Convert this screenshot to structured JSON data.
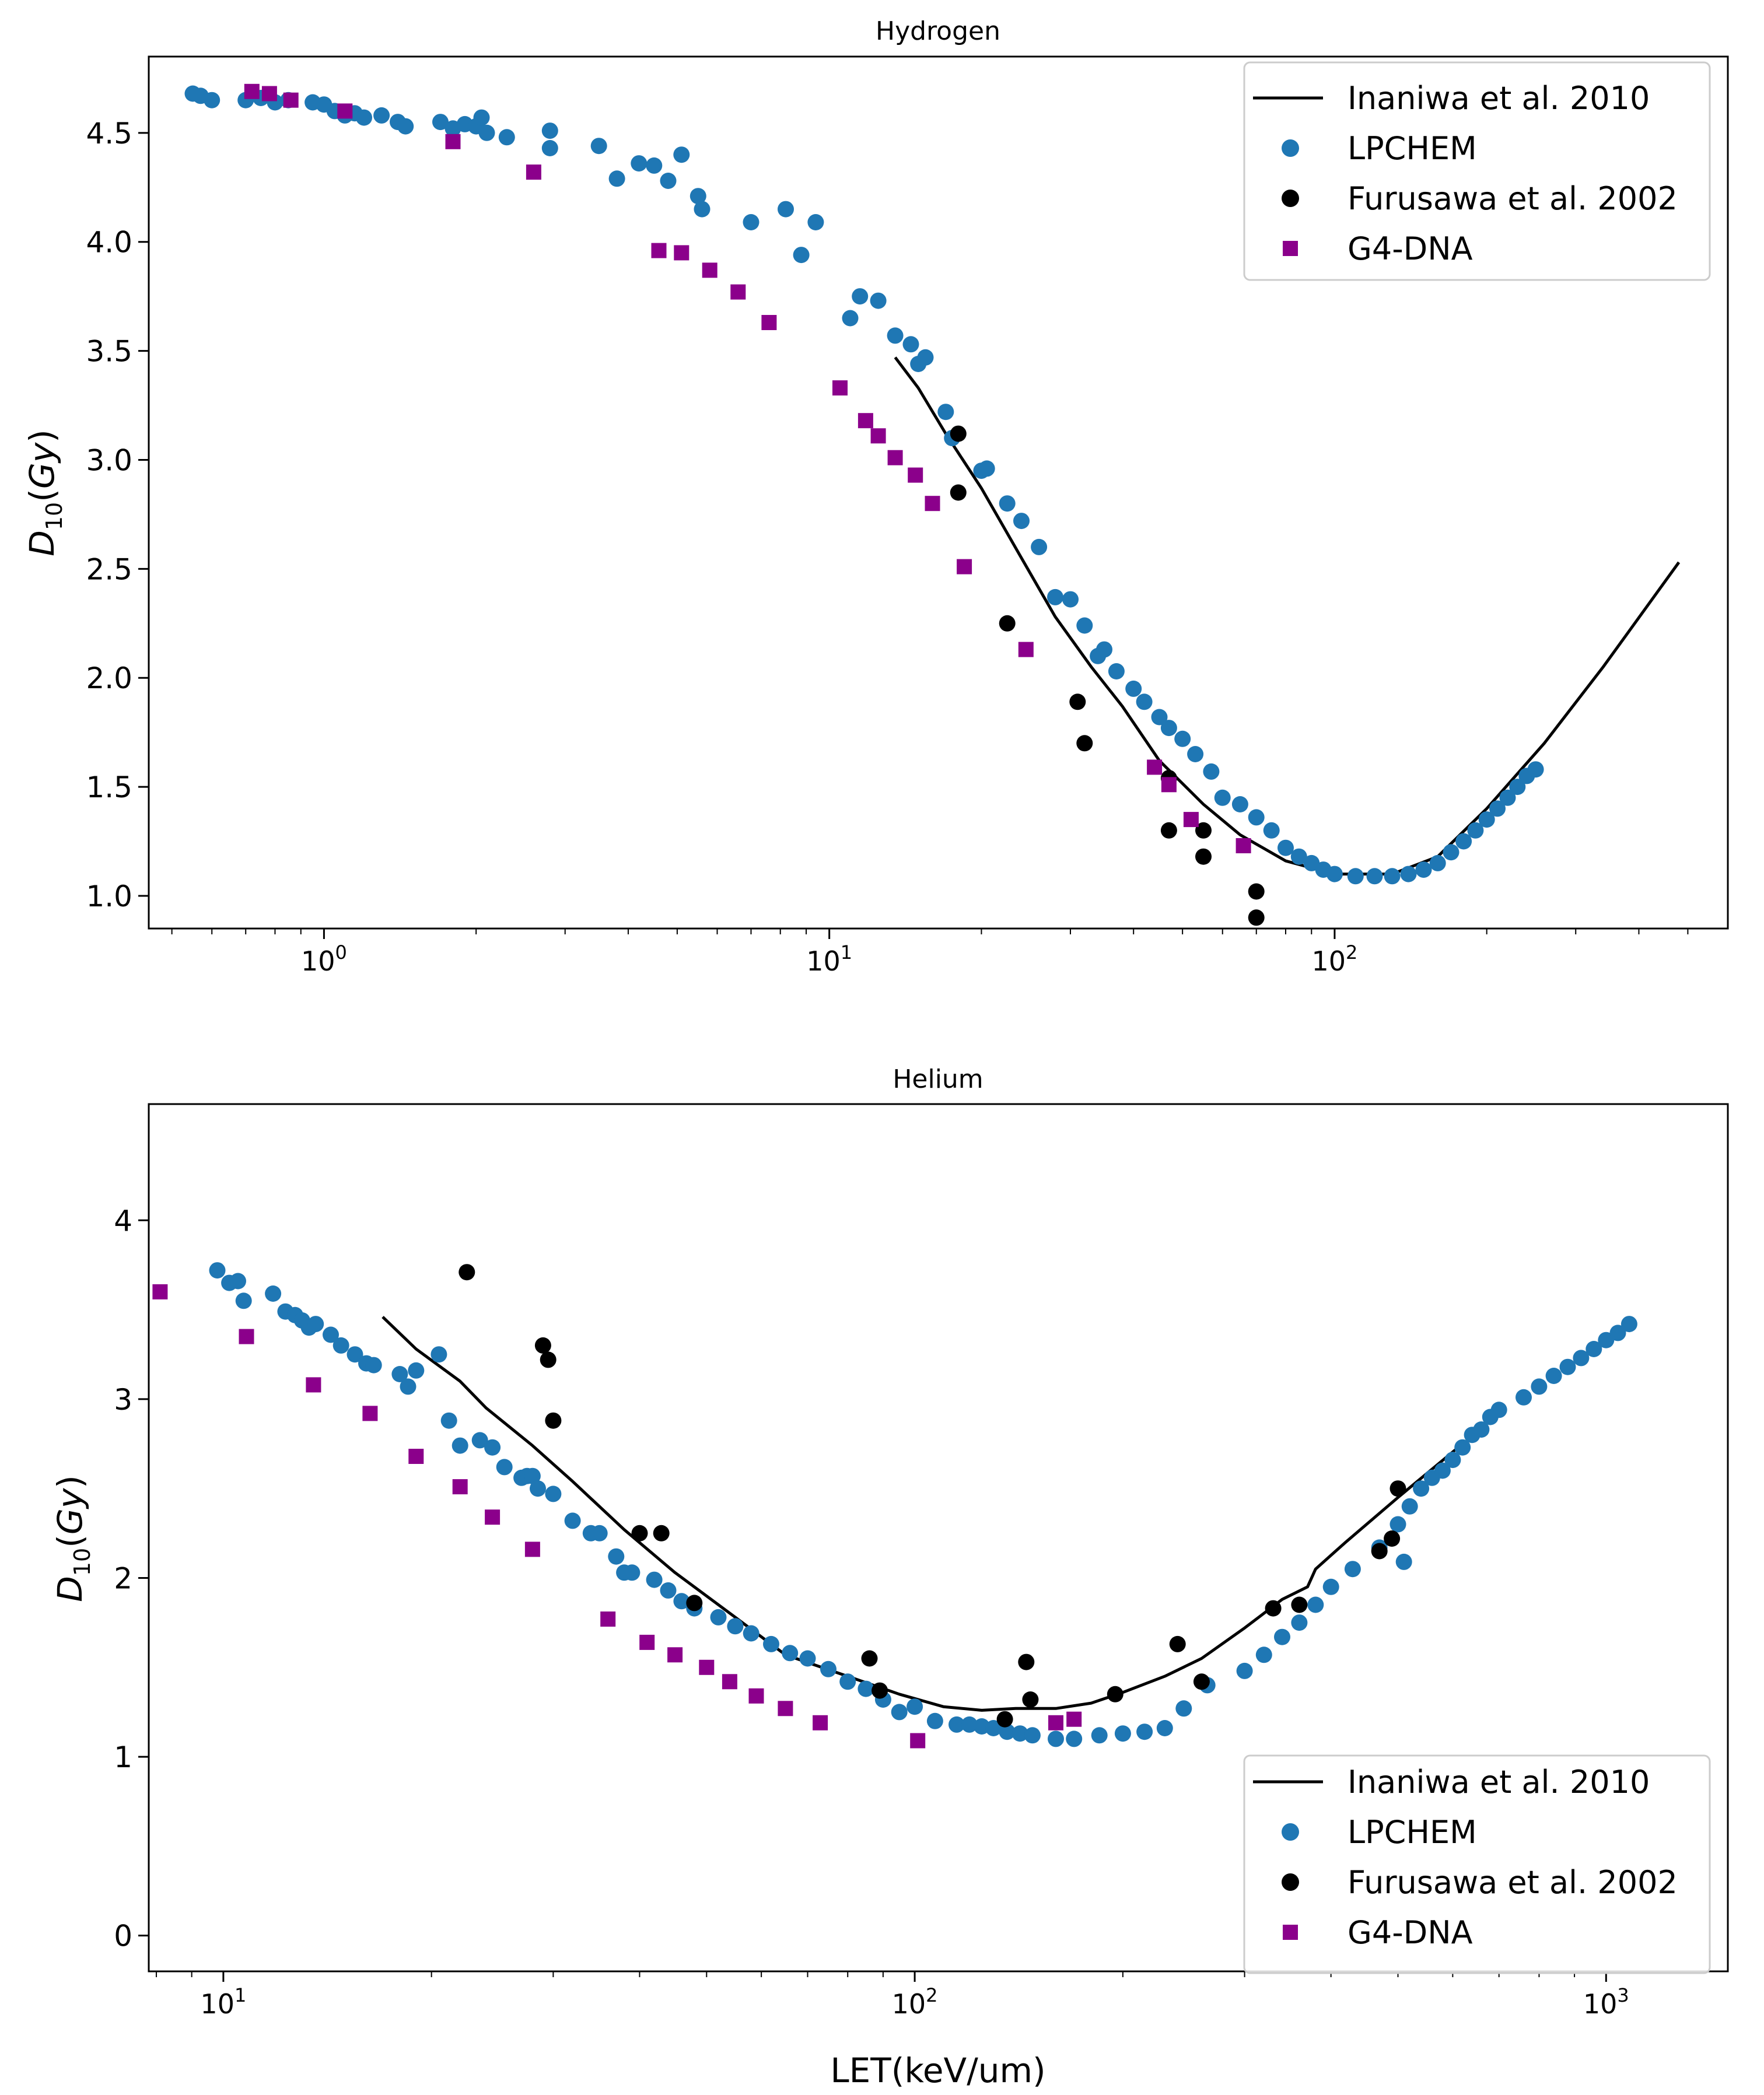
{
  "chart_data": [
    {
      "type": "scatter",
      "title": "Hydrogen",
      "xlabel": "",
      "ylabel": "D_10(Gy)",
      "xscale": "log",
      "xlim": [
        0.45,
        600
      ],
      "ylim": [
        0.85,
        4.85
      ],
      "yticks": [
        1.0,
        1.5,
        2.0,
        2.5,
        3.0,
        3.5,
        4.0,
        4.5
      ],
      "ytick_labels": [
        "1.0",
        "1.5",
        "2.0",
        "2.5",
        "3.0",
        "3.5",
        "4.0",
        "4.5"
      ],
      "xticks": [
        {
          "value": 1,
          "base": "10",
          "exp": "0"
        },
        {
          "value": 10,
          "base": "10",
          "exp": "1"
        },
        {
          "value": 100,
          "base": "10",
          "exp": "2"
        }
      ],
      "legend_position": "top-right",
      "series": [
        {
          "name": "Inaniwa et al. 2010",
          "kind": "line",
          "color": "#000000",
          "x": [
            13.5,
            15,
            17,
            20,
            24,
            28,
            33,
            38,
            45,
            55,
            65,
            80,
            100,
            130,
            160,
            200,
            260,
            340,
            480
          ],
          "y": [
            3.47,
            3.33,
            3.12,
            2.87,
            2.55,
            2.28,
            2.05,
            1.87,
            1.62,
            1.42,
            1.28,
            1.16,
            1.1,
            1.1,
            1.18,
            1.4,
            1.7,
            2.05,
            2.53
          ]
        },
        {
          "name": "LPCHEM",
          "kind": "circle",
          "color": "#1f77b4",
          "x": [
            0.55,
            0.57,
            0.6,
            0.7,
            0.75,
            0.8,
            0.85,
            0.95,
            1.0,
            1.05,
            1.1,
            1.15,
            1.2,
            1.3,
            1.4,
            1.45,
            1.7,
            1.8,
            1.9,
            2.0,
            2.05,
            2.1,
            2.3,
            2.8,
            2.8,
            3.5,
            3.8,
            4.2,
            4.5,
            4.8,
            5.1,
            5.5,
            5.6,
            7.0,
            8.2,
            8.8,
            9.4,
            11.0,
            11.5,
            12.5,
            13.5,
            14.5,
            15.0,
            15.5,
            17.0,
            17.5,
            20.0,
            20.5,
            22.5,
            24.0,
            26.0,
            28.0,
            30.0,
            32.0,
            34.0,
            35.0,
            37.0,
            40.0,
            42.0,
            45.0,
            47.0,
            50.0,
            53.0,
            57.0,
            60.0,
            65.0,
            70.0,
            75.0,
            80.0,
            85.0,
            90.0,
            95.0,
            100.0,
            110.0,
            120.0,
            130.0,
            140.0,
            150.0,
            160.0,
            170.0,
            180.0,
            190.0,
            200.0,
            210.0,
            220.0,
            230.0,
            240.0,
            250.0
          ],
          "y": [
            4.68,
            4.67,
            4.65,
            4.65,
            4.66,
            4.64,
            4.65,
            4.64,
            4.63,
            4.6,
            4.58,
            4.59,
            4.57,
            4.58,
            4.55,
            4.53,
            4.55,
            4.52,
            4.54,
            4.53,
            4.57,
            4.5,
            4.48,
            4.51,
            4.43,
            4.44,
            4.29,
            4.36,
            4.35,
            4.28,
            4.4,
            4.21,
            4.15,
            4.09,
            4.15,
            3.94,
            4.09,
            3.65,
            3.75,
            3.73,
            3.57,
            3.53,
            3.44,
            3.47,
            3.22,
            3.1,
            2.95,
            2.96,
            2.8,
            2.72,
            2.6,
            2.37,
            2.36,
            2.24,
            2.1,
            2.13,
            2.03,
            1.95,
            1.89,
            1.82,
            1.77,
            1.72,
            1.65,
            1.57,
            1.45,
            1.42,
            1.36,
            1.3,
            1.22,
            1.18,
            1.15,
            1.12,
            1.1,
            1.09,
            1.09,
            1.09,
            1.1,
            1.12,
            1.15,
            1.2,
            1.25,
            1.3,
            1.35,
            1.4,
            1.45,
            1.5,
            1.55,
            1.58
          ]
        },
        {
          "name": "Furusawa et al. 2002",
          "kind": "circle",
          "color": "#000000",
          "x": [
            18.0,
            18.0,
            22.5,
            31.0,
            32.0,
            47.0,
            47.0,
            55.0,
            55.0,
            70.0,
            70.0
          ],
          "y": [
            3.12,
            2.85,
            2.25,
            1.89,
            1.7,
            1.54,
            1.3,
            1.3,
            1.18,
            1.02,
            0.9
          ]
        },
        {
          "name": "G4-DNA",
          "kind": "square",
          "color": "#8b008b",
          "x": [
            0.72,
            0.78,
            0.86,
            1.1,
            1.8,
            2.6,
            4.6,
            5.1,
            5.8,
            6.6,
            7.6,
            10.5,
            11.8,
            12.5,
            13.5,
            14.8,
            16.0,
            18.5,
            24.5,
            44.0,
            47.0,
            52.0,
            66.0
          ],
          "y": [
            4.69,
            4.68,
            4.65,
            4.6,
            4.46,
            4.32,
            3.96,
            3.95,
            3.87,
            3.77,
            3.63,
            3.33,
            3.18,
            3.11,
            3.01,
            2.93,
            2.8,
            2.51,
            2.13,
            1.59,
            1.51,
            1.35,
            1.23
          ]
        }
      ]
    },
    {
      "type": "scatter",
      "title": "Helium",
      "xlabel": "LET(keV/um)",
      "ylabel": "D_10(Gy)",
      "xscale": "log",
      "xlim": [
        7.8,
        1500
      ],
      "ylim": [
        -0.2,
        4.65
      ],
      "yticks": [
        0,
        1,
        2,
        3,
        4
      ],
      "ytick_labels": [
        "0",
        "1",
        "2",
        "3",
        "4"
      ],
      "xticks": [
        {
          "value": 10,
          "base": "10",
          "exp": "1"
        },
        {
          "value": 100,
          "base": "10",
          "exp": "2"
        },
        {
          "value": 1000,
          "base": "10",
          "exp": "3"
        }
      ],
      "legend_position": "lower-right",
      "series": [
        {
          "name": "Inaniwa et al. 2010",
          "kind": "line",
          "color": "#000000",
          "x": [
            17,
            19,
            22,
            24,
            28,
            32,
            38,
            45,
            55,
            65,
            80,
            95,
            110,
            125,
            140,
            160,
            180,
            200,
            230,
            260,
            300,
            340,
            370,
            380,
            420,
            500,
            620
          ],
          "y": [
            3.46,
            3.28,
            3.1,
            2.95,
            2.74,
            2.54,
            2.27,
            2.03,
            1.78,
            1.57,
            1.45,
            1.35,
            1.28,
            1.26,
            1.27,
            1.27,
            1.3,
            1.36,
            1.45,
            1.55,
            1.72,
            1.88,
            1.95,
            2.05,
            2.2,
            2.45,
            2.75
          ]
        },
        {
          "name": "LPCHEM",
          "kind": "circle",
          "color": "#1f77b4",
          "x": [
            9.8,
            10.2,
            10.5,
            10.7,
            11.8,
            12.3,
            12.7,
            13.0,
            13.3,
            13.6,
            14.3,
            14.8,
            15.5,
            16.1,
            16.5,
            18.0,
            18.5,
            19.0,
            20.5,
            21.2,
            22.0,
            23.5,
            24.5,
            25.5,
            27.0,
            27.5,
            28.0,
            28.5,
            30.0,
            32.0,
            34.0,
            35.0,
            37.0,
            38.0,
            39.0,
            42.0,
            44.0,
            46.0,
            48.0,
            52.0,
            55.0,
            58.0,
            62.0,
            66.0,
            70.0,
            75.0,
            80.0,
            85.0,
            90.0,
            95.0,
            100.0,
            107.0,
            115.0,
            120.0,
            125.0,
            130.0,
            136.0,
            142.0,
            148.0,
            160.0,
            170.0,
            185.0,
            200.0,
            215.0,
            230.0,
            245.0,
            265.0,
            300.0,
            320.0,
            340.0,
            360.0,
            380.0,
            400.0,
            430.0,
            470.0,
            500.0,
            520.0,
            540.0,
            560.0,
            580.0,
            600.0,
            620.0,
            640.0,
            660.0,
            680.0,
            700.0,
            760.0,
            800.0,
            840.0,
            880.0,
            920.0,
            960.0,
            1000.0,
            1040.0,
            1080.0,
            510.0
          ],
          "y": [
            3.72,
            3.65,
            3.66,
            3.55,
            3.59,
            3.49,
            3.47,
            3.44,
            3.4,
            3.42,
            3.36,
            3.3,
            3.25,
            3.2,
            3.19,
            3.14,
            3.07,
            3.16,
            3.25,
            2.88,
            2.74,
            2.77,
            2.73,
            2.62,
            2.56,
            2.57,
            2.57,
            2.5,
            2.47,
            2.32,
            2.25,
            2.25,
            2.12,
            2.03,
            2.03,
            1.99,
            1.93,
            1.87,
            1.83,
            1.78,
            1.73,
            1.69,
            1.63,
            1.58,
            1.55,
            1.49,
            1.42,
            1.38,
            1.32,
            1.25,
            1.28,
            1.2,
            1.18,
            1.18,
            1.17,
            1.16,
            1.14,
            1.13,
            1.12,
            1.1,
            1.1,
            1.12,
            1.13,
            1.14,
            1.16,
            1.27,
            1.4,
            1.48,
            1.57,
            1.67,
            1.75,
            1.85,
            1.95,
            2.05,
            2.17,
            2.3,
            2.4,
            2.5,
            2.56,
            2.6,
            2.66,
            2.73,
            2.8,
            2.83,
            2.9,
            2.94,
            3.01,
            3.07,
            3.13,
            3.18,
            3.23,
            3.28,
            3.33,
            3.37,
            3.42,
            2.09
          ]
        },
        {
          "name": "Furusawa et al. 2002",
          "kind": "circle",
          "color": "#000000",
          "x": [
            22.5,
            29.0,
            29.5,
            30.0,
            40.0,
            43.0,
            48.0,
            86.0,
            89.0,
            135.0,
            145.0,
            147.0,
            195.0,
            240.0,
            260.0,
            330.0,
            360.0,
            470.0,
            490.0,
            500.0
          ],
          "y": [
            3.71,
            3.3,
            3.22,
            2.88,
            2.25,
            2.25,
            1.86,
            1.55,
            1.37,
            1.21,
            1.53,
            1.32,
            1.35,
            1.63,
            1.42,
            1.83,
            1.85,
            2.15,
            2.22,
            2.5
          ]
        },
        {
          "name": "G4-DNA",
          "kind": "square",
          "color": "#8b008b",
          "x": [
            8.1,
            10.8,
            13.5,
            16.3,
            19.0,
            22.0,
            24.5,
            28.0,
            36.0,
            41.0,
            45.0,
            50.0,
            54.0,
            59.0,
            65.0,
            73.0,
            101.0,
            160.0,
            170.0
          ],
          "y": [
            3.6,
            3.35,
            3.08,
            2.92,
            2.68,
            2.51,
            2.34,
            2.16,
            1.77,
            1.64,
            1.57,
            1.5,
            1.42,
            1.34,
            1.27,
            1.19,
            1.09,
            1.19,
            1.21
          ]
        }
      ]
    }
  ]
}
